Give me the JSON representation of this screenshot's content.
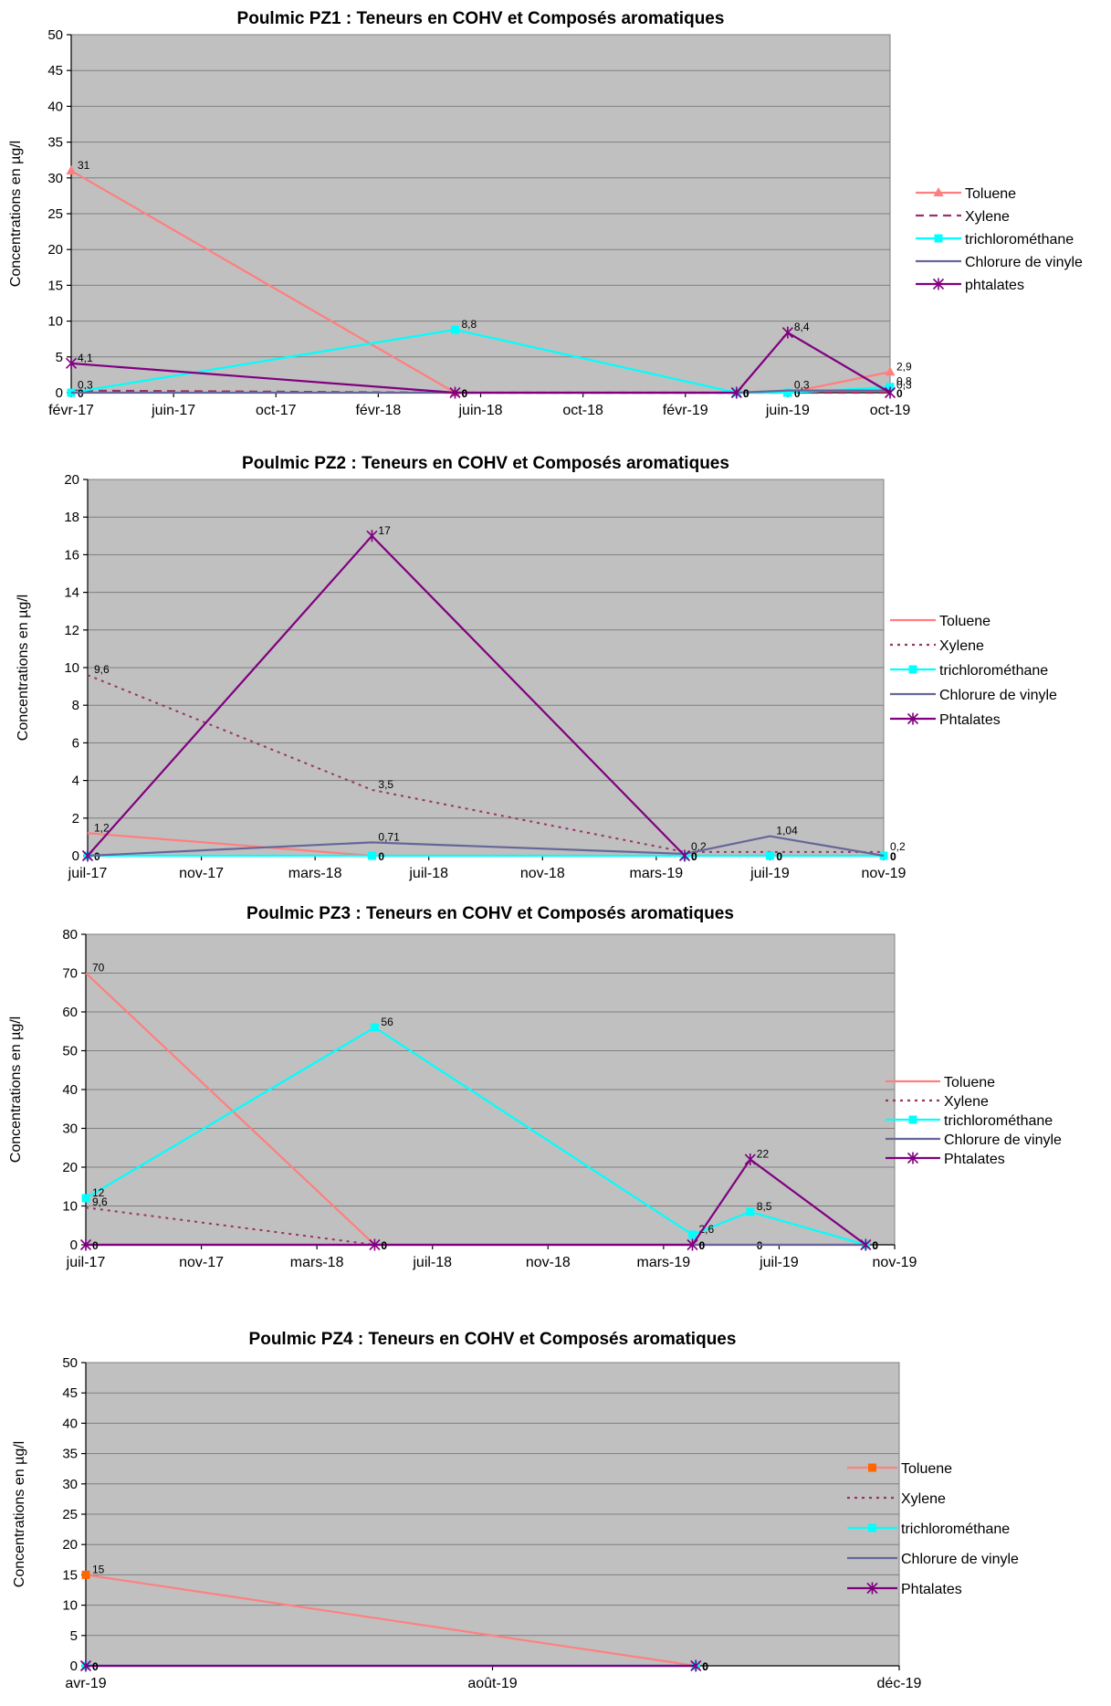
{
  "chart_data": [
    {
      "type": "line",
      "title": "Poulmic PZ1 : Teneurs en COHV et Composés aromatiques",
      "ylabel": "Concentrations en µg/l",
      "xlabel": "",
      "ylim": [
        0,
        50
      ],
      "yticks": [
        0,
        5,
        10,
        15,
        20,
        25,
        30,
        35,
        40,
        45,
        50
      ],
      "x_ticks": [
        "févr-17",
        "juin-17",
        "oct-17",
        "févr-18",
        "juin-18",
        "oct-18",
        "févr-19",
        "juin-19",
        "oct-19"
      ],
      "x_range": [
        "févr-17",
        "oct-19"
      ],
      "legend": "right",
      "grid": true,
      "series": [
        {
          "name": "Toluene",
          "color": "#ff7f7f",
          "style": "solid",
          "marker": "triangle",
          "points": [
            [
              "févr-17",
              31
            ],
            [
              "mai-18",
              0
            ],
            [
              "avr-19",
              0
            ],
            [
              "juin-19",
              0
            ],
            [
              "oct-19",
              2.9
            ]
          ],
          "labels": [
            "31",
            "",
            "",
            "",
            "2,9"
          ]
        },
        {
          "name": "Xylene",
          "color": "#993366",
          "style": "dashed",
          "marker": "none",
          "points": [
            [
              "févr-17",
              0.3
            ],
            [
              "mai-18",
              0
            ],
            [
              "avr-19",
              0
            ],
            [
              "juin-19",
              0
            ],
            [
              "oct-19",
              0
            ]
          ],
          "labels": [
            "0,3",
            "",
            "",
            "",
            ""
          ]
        },
        {
          "name": "trichlorométhane",
          "color": "#00ffff",
          "style": "solid",
          "marker": "square",
          "points": [
            [
              "févr-17",
              0
            ],
            [
              "mai-18",
              8.8
            ],
            [
              "avr-19",
              0
            ],
            [
              "juin-19",
              0
            ],
            [
              "oct-19",
              0.8
            ]
          ],
          "labels": [
            "0",
            "8,8",
            "0",
            "0",
            "0,8"
          ]
        },
        {
          "name": "Chlorure de vinyle",
          "color": "#666699",
          "style": "solid",
          "marker": "none",
          "points": [
            [
              "févr-17",
              0
            ],
            [
              "mai-18",
              0
            ],
            [
              "avr-19",
              0
            ],
            [
              "juin-19",
              0.3
            ],
            [
              "oct-19",
              0.3
            ]
          ],
          "labels": [
            "",
            "0",
            "0",
            "0,3",
            "0,3"
          ]
        },
        {
          "name": "phtalates",
          "color": "#800080",
          "style": "solid",
          "marker": "star",
          "points": [
            [
              "févr-17",
              4.1
            ],
            [
              "mai-18",
              0
            ],
            [
              "avr-19",
              0
            ],
            [
              "juin-19",
              8.4
            ],
            [
              "oct-19",
              0
            ]
          ],
          "labels": [
            "4,1",
            "0",
            "0",
            "8,4",
            "0"
          ]
        }
      ]
    },
    {
      "type": "line",
      "title": "Poulmic PZ2 : Teneurs en COHV et Composés aromatiques",
      "ylabel": "Concentrations en µg/l",
      "xlabel": "",
      "ylim": [
        0,
        20
      ],
      "yticks": [
        0,
        2,
        4,
        6,
        8,
        10,
        12,
        14,
        16,
        18,
        20
      ],
      "x_ticks": [
        "juil-17",
        "nov-17",
        "mars-18",
        "juil-18",
        "nov-18",
        "mars-19",
        "juil-19",
        "nov-19"
      ],
      "x_range": [
        "juil-17",
        "nov-19"
      ],
      "legend": "right",
      "grid": true,
      "series": [
        {
          "name": "Toluene",
          "color": "#ff7f7f",
          "style": "solid",
          "marker": "none",
          "points": [
            [
              "juil-17",
              1.2
            ],
            [
              "mai-18",
              0
            ],
            [
              "avr-19",
              0
            ],
            [
              "juil-19",
              0
            ],
            [
              "nov-19",
              0
            ]
          ],
          "labels": [
            "1,2",
            "",
            "0",
            "0",
            "0"
          ]
        },
        {
          "name": "Xylene",
          "color": "#993366",
          "style": "dotted",
          "marker": "none",
          "points": [
            [
              "juil-17",
              9.6
            ],
            [
              "mai-18",
              3.5
            ],
            [
              "avr-19",
              0.2
            ],
            [
              "juil-19",
              0.2
            ],
            [
              "nov-19",
              0.2
            ]
          ],
          "labels": [
            "9,6",
            "3,5",
            "0,2",
            "",
            "0,2"
          ]
        },
        {
          "name": "trichlorométhane",
          "color": "#00ffff",
          "style": "solid",
          "marker": "square",
          "points": [
            [
              "juil-17",
              0
            ],
            [
              "mai-18",
              0
            ],
            [
              "avr-19",
              0
            ],
            [
              "juil-19",
              0
            ],
            [
              "nov-19",
              0
            ]
          ],
          "labels": [
            "0",
            "0",
            "0",
            "0",
            "0"
          ]
        },
        {
          "name": "Chlorure de vinyle",
          "color": "#666699",
          "style": "solid",
          "marker": "none",
          "points": [
            [
              "juil-17",
              0
            ],
            [
              "mai-18",
              0.71
            ],
            [
              "avr-19",
              0.1
            ],
            [
              "juil-19",
              1.04
            ],
            [
              "nov-19",
              0
            ]
          ],
          "labels": [
            "",
            "0,71",
            "",
            "1,04",
            ""
          ]
        },
        {
          "name": "Phtalates",
          "color": "#800080",
          "style": "solid",
          "marker": "star",
          "points": [
            [
              "juil-17",
              0
            ],
            [
              "mai-18",
              17
            ],
            [
              "avr-19",
              0
            ]
          ],
          "labels": [
            "",
            "17",
            "0"
          ]
        }
      ]
    },
    {
      "type": "line",
      "title": "Poulmic PZ3 : Teneurs en COHV et Composés aromatiques",
      "ylabel": "Concentrations en µg/l",
      "xlabel": "",
      "ylim": [
        0,
        80
      ],
      "yticks": [
        0,
        10,
        20,
        30,
        40,
        50,
        60,
        70,
        80
      ],
      "x_ticks": [
        "juil-17",
        "nov-17",
        "mars-18",
        "juil-18",
        "nov-18",
        "mars-19",
        "juil-19",
        "nov-19"
      ],
      "x_range": [
        "juil-17",
        "nov-19"
      ],
      "legend": "right",
      "grid": true,
      "series": [
        {
          "name": "Toluene",
          "color": "#ff7f7f",
          "style": "solid",
          "marker": "none",
          "points": [
            [
              "juil-17",
              70
            ],
            [
              "mai-18",
              0
            ],
            [
              "avr-19",
              0
            ],
            [
              "juin-19",
              0
            ],
            [
              "oct-19",
              0
            ]
          ],
          "labels": [
            "70",
            "0",
            "0",
            "0",
            "0"
          ]
        },
        {
          "name": "Xylene",
          "color": "#993366",
          "style": "dotted",
          "marker": "none",
          "points": [
            [
              "juil-17",
              9.6
            ],
            [
              "mai-18",
              0
            ],
            [
              "avr-19",
              0
            ],
            [
              "juin-19",
              0
            ],
            [
              "oct-19",
              0
            ]
          ],
          "labels": [
            "9,6",
            "",
            "",
            "",
            ""
          ]
        },
        {
          "name": "trichlorométhane",
          "color": "#00ffff",
          "style": "solid",
          "marker": "square",
          "points": [
            [
              "juil-17",
              12
            ],
            [
              "mai-18",
              56
            ],
            [
              "avr-19",
              2.6
            ],
            [
              "juin-19",
              8.5
            ],
            [
              "oct-19",
              0
            ]
          ],
          "labels": [
            "12",
            "56",
            "2,6",
            "8,5",
            "0"
          ]
        },
        {
          "name": "Chlorure de vinyle",
          "color": "#666699",
          "style": "solid",
          "marker": "none",
          "points": [
            [
              "juil-17",
              0
            ],
            [
              "mai-18",
              0
            ],
            [
              "avr-19",
              0
            ],
            [
              "juin-19",
              0
            ],
            [
              "oct-19",
              0
            ]
          ],
          "labels": [
            "",
            "",
            "",
            "",
            ""
          ]
        },
        {
          "name": "Phtalates",
          "color": "#800080",
          "style": "solid",
          "marker": "star",
          "points": [
            [
              "juil-17",
              0
            ],
            [
              "mai-18",
              0
            ],
            [
              "avr-19",
              0
            ],
            [
              "juin-19",
              22
            ],
            [
              "oct-19",
              0
            ]
          ],
          "labels": [
            "0",
            "0",
            "0",
            "22",
            "0"
          ]
        }
      ]
    },
    {
      "type": "line",
      "title": "Poulmic PZ4 : Teneurs en COHV et Composés aromatiques",
      "ylabel": "Concentrations en µg/l",
      "xlabel": "",
      "ylim": [
        0,
        50
      ],
      "yticks": [
        0,
        5,
        10,
        15,
        20,
        25,
        30,
        35,
        40,
        45,
        50
      ],
      "x_ticks": [
        "avr-19",
        "août-19",
        "déc-19"
      ],
      "x_range": [
        "avr-19",
        "déc-19"
      ],
      "legend": "right",
      "grid": true,
      "series": [
        {
          "name": "Toluene",
          "color": "#ff6600",
          "line_color": "#ff8080",
          "style": "solid",
          "marker": "square",
          "points": [
            [
              "avr-19",
              15
            ],
            [
              "oct-19",
              0
            ]
          ],
          "labels": [
            "15",
            "0"
          ]
        },
        {
          "name": "Xylene",
          "color": "#993366",
          "style": "dotted",
          "marker": "none",
          "points": [
            [
              "avr-19",
              0
            ],
            [
              "oct-19",
              0
            ]
          ],
          "labels": [
            "",
            ""
          ]
        },
        {
          "name": "trichlorométhane",
          "color": "#00ffff",
          "style": "solid",
          "marker": "square",
          "points": [
            [
              "avr-19",
              0
            ],
            [
              "oct-19",
              0
            ]
          ],
          "labels": [
            "0",
            "0"
          ]
        },
        {
          "name": "Chlorure de vinyle",
          "color": "#666699",
          "style": "solid",
          "marker": "none",
          "points": [
            [
              "avr-19",
              0
            ],
            [
              "oct-19",
              0
            ]
          ],
          "labels": [
            "",
            ""
          ]
        },
        {
          "name": "Phtalates",
          "color": "#800080",
          "style": "solid",
          "marker": "star",
          "points": [
            [
              "avr-19",
              0
            ],
            [
              "oct-19",
              0
            ]
          ],
          "labels": [
            "0",
            "0"
          ]
        }
      ]
    }
  ]
}
